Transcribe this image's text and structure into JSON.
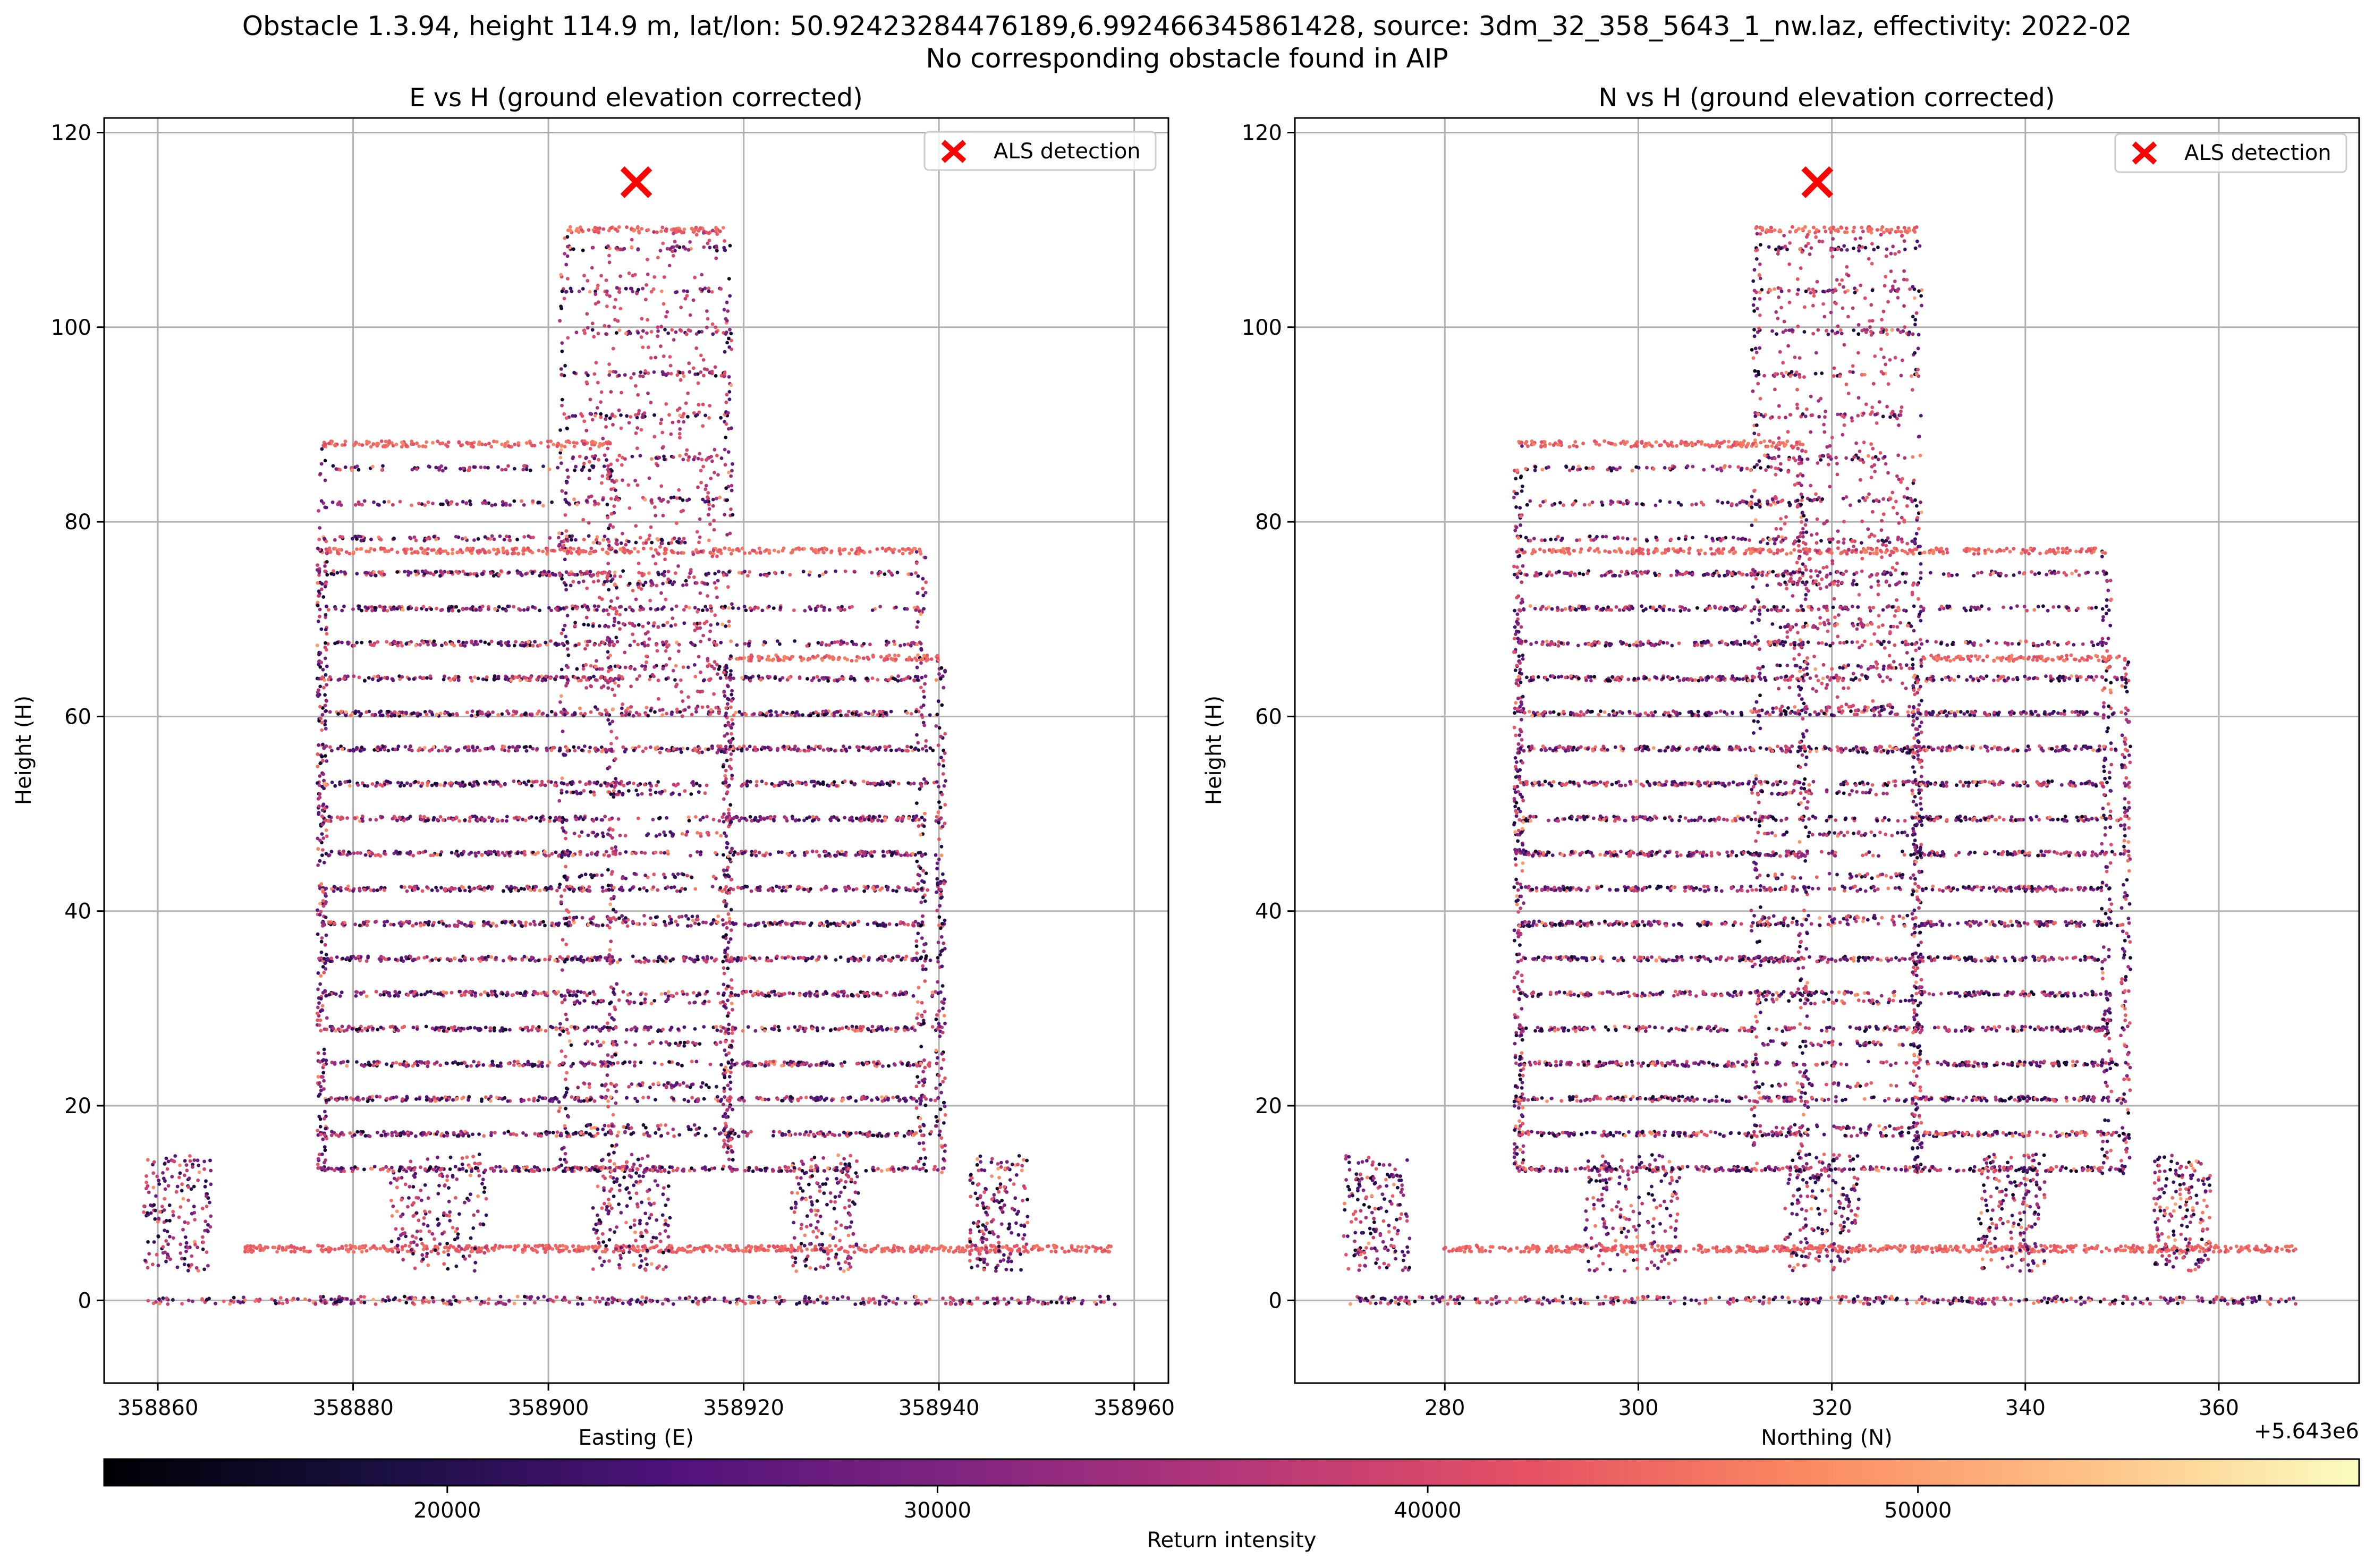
{
  "figure": {
    "title_line1": "Obstacle 1.3.94, height 114.9 m, lat/lon: 50.92423284476189,6.992466345861428, source: 3dm_32_358_5643_1_nw.laz, effectivity: 2022-02",
    "title_line2": "No corresponding obstacle found in AIP"
  },
  "chart_data": [
    {
      "type": "scatter",
      "title": "E vs H (ground elevation corrected)",
      "xlabel": "Easting (E)",
      "ylabel": "Height (H)",
      "xlim": [
        358854.5,
        358963.5
      ],
      "ylim": [
        -8.5,
        121.5
      ],
      "xticks": [
        358860,
        358880,
        358900,
        358920,
        358940,
        358960
      ],
      "xtick_labels": [
        "358860",
        "358880",
        "358900",
        "358920",
        "358940",
        "358960"
      ],
      "yticks": [
        0,
        20,
        40,
        60,
        80,
        100,
        120
      ],
      "ytick_labels": [
        "0",
        "20",
        "40",
        "60",
        "80",
        "100",
        "120"
      ],
      "grid": true,
      "legend": {
        "position": "upper right",
        "entries": [
          "ALS detection"
        ]
      },
      "detection": {
        "x": 358909,
        "y": 114.9,
        "marker": "x",
        "color": "#ff0000"
      },
      "point_cloud": {
        "description_color": "Return intensity",
        "xrange": [
          358859,
          358958
        ],
        "yrange": [
          -3,
          112
        ]
      }
    },
    {
      "type": "scatter",
      "title": "N vs H (ground elevation corrected)",
      "xlabel": "Northing (N)",
      "ylabel": "Height (H)",
      "offset_text": "+5.643e6",
      "xlim": [
        264.5,
        374.5
      ],
      "ylim": [
        -8.5,
        121.5
      ],
      "xticks": [
        280,
        300,
        320,
        340,
        360
      ],
      "xtick_labels": [
        "280",
        "300",
        "320",
        "340",
        "360"
      ],
      "yticks": [
        0,
        20,
        40,
        60,
        80,
        100,
        120
      ],
      "ytick_labels": [
        "0",
        "20",
        "40",
        "60",
        "80",
        "100",
        "120"
      ],
      "grid": true,
      "legend": {
        "position": "upper right",
        "entries": [
          "ALS detection"
        ]
      },
      "detection": {
        "x": 318.5,
        "y": 114.9,
        "marker": "x",
        "color": "#ff0000"
      },
      "point_cloud": {
        "description_color": "Return intensity",
        "xrange": [
          270,
          368
        ],
        "yrange": [
          -3,
          112
        ]
      }
    }
  ],
  "colorbar": {
    "label": "Return intensity",
    "range": [
      13000,
      59000
    ],
    "ticks": [
      20000,
      30000,
      40000,
      50000
    ],
    "tick_labels": [
      "20000",
      "30000",
      "40000",
      "50000"
    ],
    "colormap": "magma"
  }
}
